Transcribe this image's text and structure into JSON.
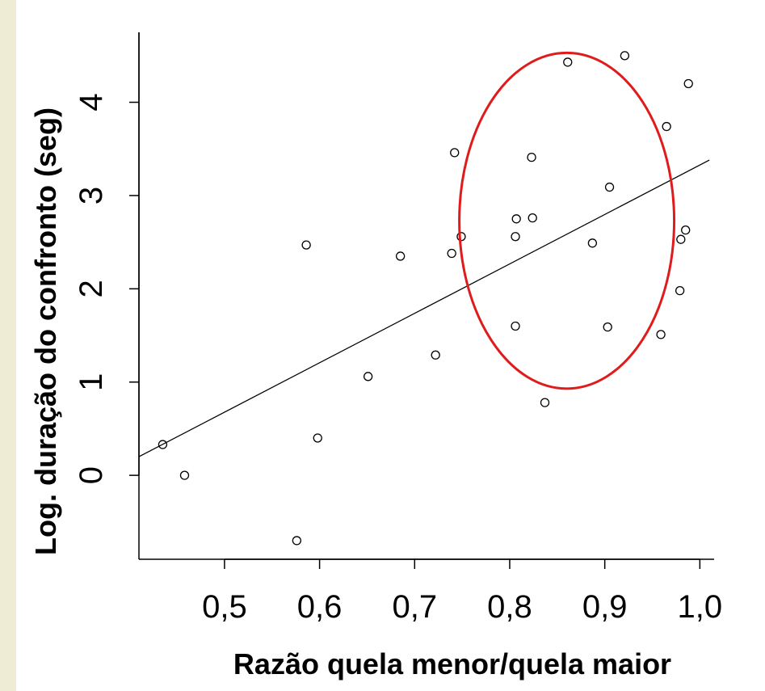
{
  "chart_data": {
    "type": "scatter",
    "xlabel": "Razão quela menor/quela maior",
    "ylabel": "Log. duração do confronto (seg)",
    "x_ticks": [
      "0,5",
      "0,6",
      "0,7",
      "0,8",
      "0,9",
      "1,0"
    ],
    "x_tick_values": [
      0.5,
      0.6,
      0.7,
      0.8,
      0.9,
      1.0
    ],
    "y_ticks": [
      "0",
      "1",
      "2",
      "3",
      "4"
    ],
    "y_tick_values": [
      0,
      1,
      2,
      3,
      4
    ],
    "xlim": [
      0.41,
      1.015
    ],
    "ylim": [
      -0.9,
      4.75
    ],
    "points": [
      {
        "x": 0.435,
        "y": 0.33
      },
      {
        "x": 0.458,
        "y": 0.0
      },
      {
        "x": 0.576,
        "y": -0.7
      },
      {
        "x": 0.586,
        "y": 2.47
      },
      {
        "x": 0.598,
        "y": 0.4
      },
      {
        "x": 0.651,
        "y": 1.06
      },
      {
        "x": 0.685,
        "y": 2.35
      },
      {
        "x": 0.722,
        "y": 1.29
      },
      {
        "x": 0.739,
        "y": 2.38
      },
      {
        "x": 0.742,
        "y": 3.46
      },
      {
        "x": 0.749,
        "y": 2.56
      },
      {
        "x": 0.806,
        "y": 1.6
      },
      {
        "x": 0.806,
        "y": 2.56
      },
      {
        "x": 0.807,
        "y": 2.75
      },
      {
        "x": 0.823,
        "y": 3.41
      },
      {
        "x": 0.824,
        "y": 2.76
      },
      {
        "x": 0.837,
        "y": 0.78
      },
      {
        "x": 0.861,
        "y": 4.43
      },
      {
        "x": 0.887,
        "y": 2.49
      },
      {
        "x": 0.903,
        "y": 1.59
      },
      {
        "x": 0.905,
        "y": 3.09
      },
      {
        "x": 0.921,
        "y": 4.5
      },
      {
        "x": 0.959,
        "y": 1.51
      },
      {
        "x": 0.965,
        "y": 3.74
      },
      {
        "x": 0.979,
        "y": 1.98
      },
      {
        "x": 0.98,
        "y": 2.53
      },
      {
        "x": 0.985,
        "y": 2.63
      },
      {
        "x": 0.988,
        "y": 4.2
      }
    ],
    "trendline": {
      "x": [
        0.41,
        1.01
      ],
      "y": [
        0.2,
        3.38
      ]
    },
    "highlight_ellipse": {
      "center_x": 0.86,
      "center_y": 2.73,
      "radius_x": 0.113,
      "radius_y": 1.8,
      "color": "#e01b1b"
    },
    "grid": false,
    "colors": {
      "points": "#000000",
      "trendline": "#000000",
      "highlight": "#e01b1b",
      "background": "#ffffff",
      "frame": "#f3f1df"
    }
  }
}
